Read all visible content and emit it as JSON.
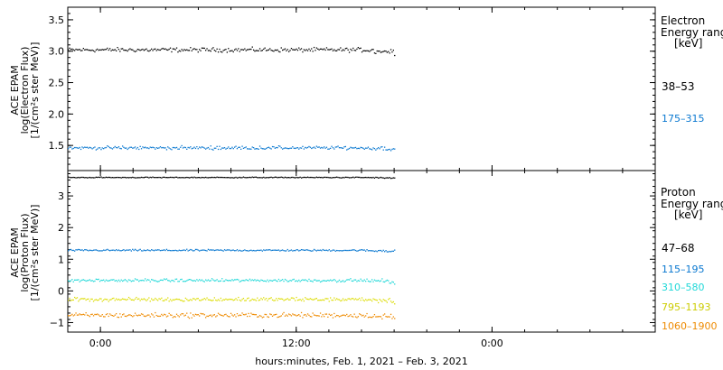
{
  "chart_data": [
    {
      "type": "scatter",
      "ylabel_lines": [
        "ACE EPAM",
        "log(Electron Flux)",
        "[1/(cm²s ster MeV)]"
      ],
      "ylim": [
        1.1,
        3.7
      ],
      "yticks": [
        "1.5",
        "2.0",
        "2.5",
        "3.0",
        "3.5"
      ],
      "legend_title": [
        "Electron",
        "Energy range",
        "[keV]"
      ],
      "series": [
        {
          "name": "38–53",
          "color": "#000000",
          "level": 3.03,
          "spread": 0.05,
          "start_hour": -2,
          "end_hour": 18
        },
        {
          "name": "175–315",
          "color": "#0a78d0",
          "level": 1.47,
          "spread": 0.04,
          "start_hour": -2,
          "end_hour": 18
        }
      ]
    },
    {
      "type": "scatter",
      "ylabel_lines": [
        "ACE EPAM",
        "log(Proton Flux)",
        "[1/(cm²s ster MeV)]"
      ],
      "ylim": [
        -1.3,
        3.8
      ],
      "yticks": [
        "−1",
        "0",
        "1",
        "2",
        "3"
      ],
      "legend_title": [
        "Proton",
        "Energy range",
        "[keV]"
      ],
      "series": [
        {
          "name": "47–68",
          "color": "#000000",
          "level": 3.6,
          "spread": 0.02,
          "start_hour": -2,
          "end_hour": 18
        },
        {
          "name": "115–195",
          "color": "#0a78d0",
          "level": 1.3,
          "spread": 0.04,
          "start_hour": -2,
          "end_hour": 18
        },
        {
          "name": "310–580",
          "color": "#20d8d8",
          "level": 0.35,
          "spread": 0.07,
          "start_hour": -2,
          "end_hour": 18
        },
        {
          "name": "795–1193",
          "color": "#dcdc00",
          "level": -0.25,
          "spread": 0.09,
          "start_hour": -2,
          "end_hour": 18
        },
        {
          "name": "1060–1900",
          "color": "#ee8a00",
          "level": -0.75,
          "spread": 0.11,
          "start_hour": -2,
          "end_hour": 18
        }
      ]
    }
  ],
  "x_axis": {
    "xlim_hours": [
      -2,
      34
    ],
    "tick_hours": [
      0,
      12,
      24
    ],
    "tick_labels": [
      "0:00",
      "12:00",
      "0:00"
    ],
    "xlabel": "hours:minutes, Feb.  1, 2021 – Feb.  3, 2021"
  }
}
